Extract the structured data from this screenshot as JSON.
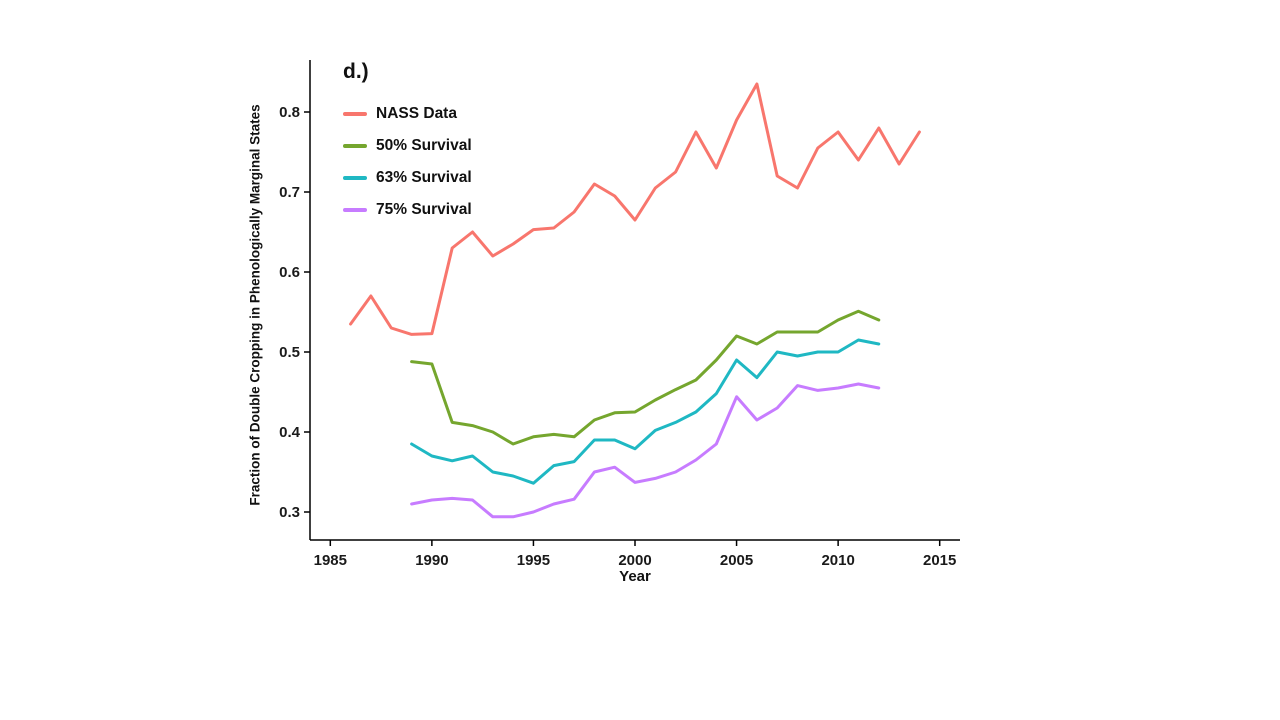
{
  "figure": {
    "panel_label": "d.)"
  },
  "chart_data": {
    "type": "line",
    "title": "",
    "xlabel": "Year",
    "ylabel": "Fraction of Double Cropping in Phenologically Marginal States",
    "xlim": [
      1984,
      2016
    ],
    "ylim": [
      0.265,
      0.865
    ],
    "x_ticks": [
      "1985",
      "1990",
      "1995",
      "2000",
      "2005",
      "2010",
      "2015"
    ],
    "y_ticks": [
      "0.3",
      "0.4",
      "0.5",
      "0.6",
      "0.7",
      "0.8"
    ],
    "grid": false,
    "legend_position": "top-left-inside",
    "series": [
      {
        "name": "NASS Data",
        "color": "#F8766D",
        "x": [
          1986,
          1987,
          1988,
          1989,
          1990,
          1991,
          1992,
          1993,
          1994,
          1995,
          1996,
          1997,
          1998,
          1999,
          2000,
          2001,
          2002,
          2003,
          2004,
          2005,
          2006,
          2007,
          2008,
          2009,
          2010,
          2011,
          2012,
          2013,
          2014
        ],
        "values": [
          0.535,
          0.57,
          0.53,
          0.522,
          0.523,
          0.63,
          0.65,
          0.62,
          0.635,
          0.653,
          0.655,
          0.675,
          0.71,
          0.695,
          0.665,
          0.705,
          0.725,
          0.775,
          0.73,
          0.79,
          0.835,
          0.72,
          0.705,
          0.755,
          0.775,
          0.74,
          0.78,
          0.735,
          0.775
        ]
      },
      {
        "name": "50% Survival",
        "color": "#75A62E",
        "x": [
          1989,
          1990,
          1991,
          1992,
          1993,
          1994,
          1995,
          1996,
          1997,
          1998,
          1999,
          2000,
          2001,
          2002,
          2003,
          2004,
          2005,
          2006,
          2007,
          2008,
          2009,
          2010,
          2011,
          2012
        ],
        "values": [
          0.488,
          0.485,
          0.412,
          0.408,
          0.4,
          0.385,
          0.394,
          0.397,
          0.394,
          0.415,
          0.424,
          0.425,
          0.44,
          0.453,
          0.465,
          0.49,
          0.52,
          0.51,
          0.525,
          0.525,
          0.525,
          0.54,
          0.551,
          0.54
        ]
      },
      {
        "name": "63% Survival",
        "color": "#1FB8C3",
        "x": [
          1989,
          1990,
          1991,
          1992,
          1993,
          1994,
          1995,
          1996,
          1997,
          1998,
          1999,
          2000,
          2001,
          2002,
          2003,
          2004,
          2005,
          2006,
          2007,
          2008,
          2009,
          2010,
          2011,
          2012
        ],
        "values": [
          0.385,
          0.37,
          0.364,
          0.37,
          0.35,
          0.345,
          0.336,
          0.358,
          0.363,
          0.39,
          0.39,
          0.379,
          0.402,
          0.412,
          0.425,
          0.448,
          0.49,
          0.468,
          0.5,
          0.495,
          0.5,
          0.5,
          0.515,
          0.51
        ]
      },
      {
        "name": "75% Survival",
        "color": "#C77CFF",
        "x": [
          1989,
          1990,
          1991,
          1992,
          1993,
          1994,
          1995,
          1996,
          1997,
          1998,
          1999,
          2000,
          2001,
          2002,
          2003,
          2004,
          2005,
          2006,
          2007,
          2008,
          2009,
          2010,
          2011,
          2012
        ],
        "values": [
          0.31,
          0.315,
          0.317,
          0.315,
          0.294,
          0.294,
          0.3,
          0.31,
          0.316,
          0.35,
          0.356,
          0.337,
          0.342,
          0.35,
          0.365,
          0.385,
          0.444,
          0.415,
          0.43,
          0.458,
          0.452,
          0.455,
          0.46,
          0.455
        ]
      }
    ]
  }
}
